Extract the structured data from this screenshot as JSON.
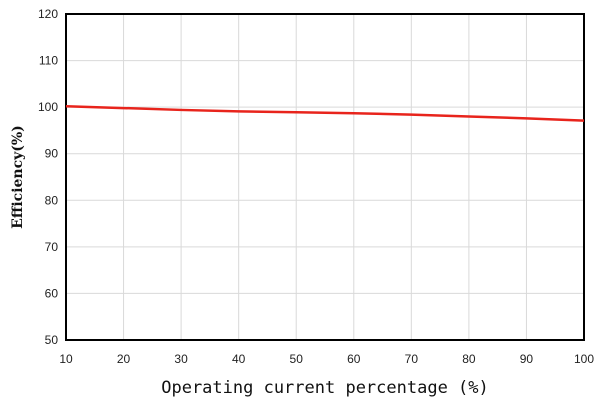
{
  "chart_data": {
    "type": "line",
    "xlabel": "Operating current percentage (%)",
    "ylabel": "Efficiency(%)",
    "xlim": [
      10,
      100
    ],
    "ylim": [
      50,
      120
    ],
    "xticks": [
      10,
      20,
      30,
      40,
      50,
      60,
      70,
      80,
      90,
      100
    ],
    "yticks": [
      50,
      60,
      70,
      80,
      90,
      100,
      110,
      120
    ],
    "grid": true,
    "series": [
      {
        "color": "#e8241c",
        "x": [
          10,
          20,
          30,
          40,
          50,
          60,
          70,
          80,
          90,
          100
        ],
        "y": [
          100.2,
          99.8,
          99.4,
          99.1,
          98.9,
          98.7,
          98.4,
          98.0,
          97.6,
          97.1
        ]
      }
    ]
  }
}
